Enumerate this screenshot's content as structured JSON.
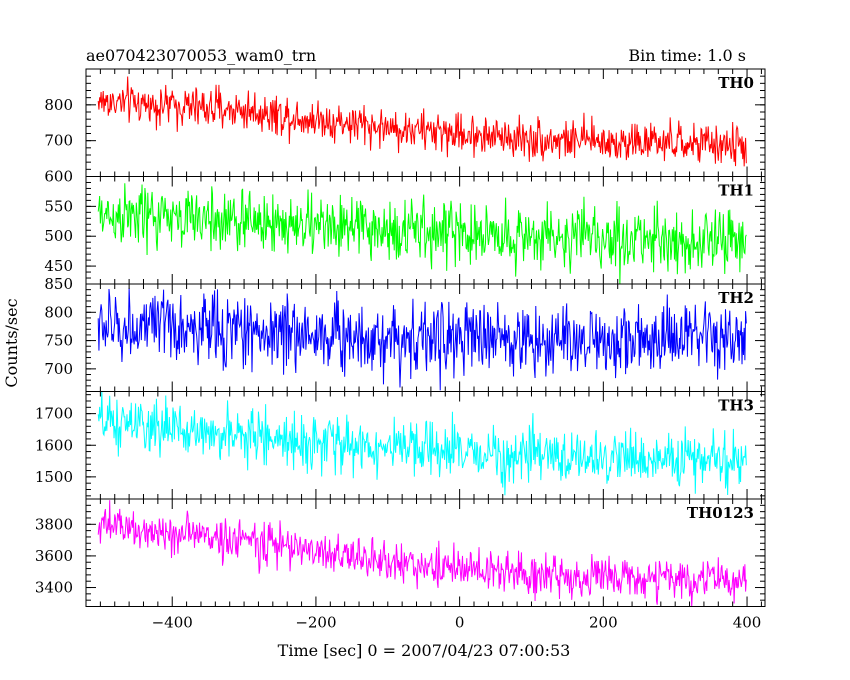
{
  "header": {
    "title": "ae070423070053_wam0_trn",
    "bin_time": "Bin time: 1.0 s"
  },
  "axes": {
    "ylabel": "Counts/sec",
    "xlabel": "Time [sec] 0 = 2007/04/23 07:00:53"
  },
  "chart_data": {
    "type": "line",
    "title": "ae070423070053_wam0_trn",
    "xlabel": "Time [sec] 0 = 2007/04/23 07:00:53",
    "ylabel": "Counts/sec",
    "bin_time_s": 1.0,
    "x_range": [
      -503,
      399
    ],
    "xlim": [
      -520,
      425
    ],
    "x_ticks": [
      -400,
      -200,
      0,
      200,
      400
    ],
    "x_tick_labels": [
      "−400",
      "−200",
      "0",
      "200",
      "400"
    ],
    "panels": [
      {
        "name": "TH0",
        "color": "#ff0000",
        "ylim": [
          600,
          900
        ],
        "y_ticks": [
          600,
          700,
          800
        ],
        "y_tick_labels": [
          "600",
          "700",
          "800"
        ],
        "trend": [
          [
            -500,
            810
          ],
          [
            -300,
            785
          ],
          [
            -100,
            735
          ],
          [
            100,
            705
          ],
          [
            400,
            685
          ]
        ],
        "noise_sd": 28
      },
      {
        "name": "TH1",
        "color": "#00ff00",
        "ylim": [
          420,
          600
        ],
        "y_ticks": [
          450,
          500,
          550
        ],
        "y_tick_labels": [
          "450",
          "500",
          "550"
        ],
        "trend": [
          [
            -500,
            535
          ],
          [
            -300,
            525
          ],
          [
            -100,
            510
          ],
          [
            100,
            500
          ],
          [
            400,
            490
          ]
        ],
        "noise_sd": 26
      },
      {
        "name": "TH2",
        "color": "#0000ff",
        "ylim": [
          660,
          850
        ],
        "y_ticks": [
          700,
          750,
          800,
          850
        ],
        "y_tick_labels": [
          "700",
          "750",
          "800",
          "850"
        ],
        "trend": [
          [
            -500,
            775
          ],
          [
            -300,
            768
          ],
          [
            -100,
            755
          ],
          [
            100,
            752
          ],
          [
            400,
            750
          ]
        ],
        "noise_sd": 32
      },
      {
        "name": "TH3",
        "color": "#00ffff",
        "ylim": [
          1430,
          1770
        ],
        "y_ticks": [
          1500,
          1600,
          1700
        ],
        "y_tick_labels": [
          "1500",
          "1600",
          "1700"
        ],
        "trend": [
          [
            -500,
            1670
          ],
          [
            -300,
            1630
          ],
          [
            -100,
            1590
          ],
          [
            100,
            1565
          ],
          [
            400,
            1550
          ]
        ],
        "noise_sd": 42
      },
      {
        "name": "TH0123",
        "color": "#ff00ff",
        "ylim": [
          3280,
          3960
        ],
        "y_ticks": [
          3400,
          3600,
          3800
        ],
        "y_tick_labels": [
          "3400",
          "3600",
          "3800"
        ],
        "trend": [
          [
            -500,
            3790
          ],
          [
            -300,
            3700
          ],
          [
            -100,
            3560
          ],
          [
            100,
            3480
          ],
          [
            400,
            3440
          ]
        ],
        "noise_sd": 65
      }
    ]
  }
}
